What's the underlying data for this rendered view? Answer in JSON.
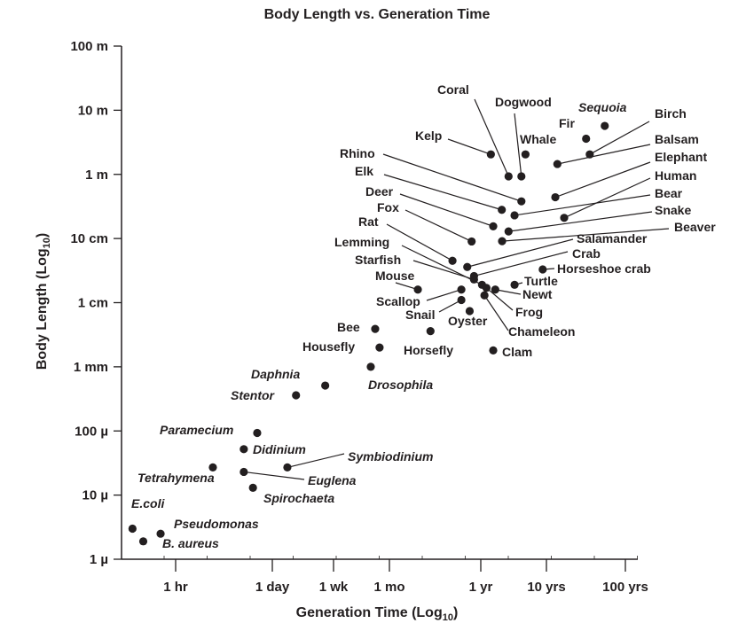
{
  "chart_data": {
    "type": "scatter",
    "title": "Body Length vs. Generation Time",
    "xlabel": "Generation Time (Log10)",
    "xlabel_main": "Generation Time (Log",
    "xlabel_sub": "10",
    "xlabel_close": ")",
    "ylabel": "Body Length (Log10)",
    "ylabel_main": "Body Length (Log",
    "ylabel_sub": "10",
    "ylabel_close": ")",
    "x_scale": "log",
    "y_scale": "log",
    "x_units": "hours",
    "y_units": "meters",
    "x_ticks": [
      {
        "label": "1 hr",
        "hours": 1
      },
      {
        "label": "1 day",
        "hours": 24
      },
      {
        "label": "1 wk",
        "hours": 168
      },
      {
        "label": "1 mo",
        "hours": 720
      },
      {
        "label": "1 yr",
        "hours": 8760
      },
      {
        "label": "10 yrs",
        "hours": 87600
      },
      {
        "label": "100 yrs",
        "hours": 876000
      }
    ],
    "y_ticks": [
      {
        "label": "100 m",
        "meters": 100
      },
      {
        "label": "10 m",
        "meters": 10
      },
      {
        "label": "1 m",
        "meters": 1
      },
      {
        "label": "10 cm",
        "meters": 0.1
      },
      {
        "label": "1 cm",
        "meters": 0.01
      },
      {
        "label": "1 mm",
        "meters": 0.001
      },
      {
        "label": "100 µ",
        "meters": 0.0001
      },
      {
        "label": "10 µ",
        "meters": 1e-05
      },
      {
        "label": "1 µ",
        "meters": 1e-06
      }
    ],
    "ylim_meters": [
      1e-06,
      100
    ],
    "grid": false,
    "marker_color": "#231f20",
    "points": [
      {
        "name": "Coral",
        "hours": 23200,
        "meters": 0.93,
        "emphasis": true
      },
      {
        "name": "Dogwood",
        "hours": 36400,
        "meters": 0.93
      },
      {
        "name": "Sequoia",
        "hours": 480000,
        "meters": 5.7,
        "italic": true
      },
      {
        "name": "Birch",
        "hours": 310000,
        "meters": 2.05
      },
      {
        "name": "Fir",
        "hours": 278600,
        "meters": 3.6
      },
      {
        "name": "Kelp",
        "hours": 12470,
        "meters": 2.05
      },
      {
        "name": "Whale",
        "hours": 42000,
        "meters": 2.05
      },
      {
        "name": "Balsam",
        "hours": 120500,
        "meters": 1.45
      },
      {
        "name": "Elephant",
        "hours": 113500,
        "meters": 0.44
      },
      {
        "name": "Rhino",
        "hours": 36400,
        "meters": 0.38
      },
      {
        "name": "Elk",
        "hours": 18300,
        "meters": 0.28
      },
      {
        "name": "Human",
        "hours": 147000,
        "meters": 0.21
      },
      {
        "name": "Deer",
        "hours": 13550,
        "meters": 0.155
      },
      {
        "name": "Bear",
        "hours": 28600,
        "meters": 0.23
      },
      {
        "name": "Fox",
        "hours": 6820,
        "meters": 0.09
      },
      {
        "name": "Snake",
        "hours": 23200,
        "meters": 0.129
      },
      {
        "name": "Rat",
        "hours": 4040,
        "meters": 0.045
      },
      {
        "name": "Beaver",
        "hours": 18500,
        "meters": 0.091
      },
      {
        "name": "Lemming",
        "hours": 9140,
        "meters": 0.019
      },
      {
        "name": "Salamander",
        "hours": 6050,
        "meters": 0.036
      },
      {
        "name": "Crab",
        "hours": 7280,
        "meters": 0.026
      },
      {
        "name": "Starfish",
        "hours": 7280,
        "meters": 0.023
      },
      {
        "name": "Horseshoe crab",
        "hours": 76900,
        "meters": 0.033
      },
      {
        "name": "Mouse",
        "hours": 1567,
        "meters": 0.016
      },
      {
        "name": "Turtle",
        "hours": 28640,
        "meters": 0.019
      },
      {
        "name": "Scallop",
        "hours": 5150,
        "meters": 0.016
      },
      {
        "name": "Newt",
        "hours": 14560,
        "meters": 0.016
      },
      {
        "name": "Snail",
        "hours": 5150,
        "meters": 0.011
      },
      {
        "name": "Frog",
        "hours": 10690,
        "meters": 0.017
      },
      {
        "name": "Oyster",
        "hours": 6460,
        "meters": 0.0074
      },
      {
        "name": "Chameleon",
        "hours": 9960,
        "meters": 0.013
      },
      {
        "name": "Bee",
        "hours": 497,
        "meters": 0.0039
      },
      {
        "name": "Housefly",
        "hours": 557,
        "meters": 0.002
      },
      {
        "name": "Horsefly",
        "hours": 2213,
        "meters": 0.0036
      },
      {
        "name": "Clam",
        "hours": 13550,
        "meters": 0.0018
      },
      {
        "name": "Daphnia",
        "hours": 129,
        "meters": 0.00051,
        "italic": true
      },
      {
        "name": "Drosophila",
        "hours": 443,
        "meters": 0.001,
        "italic": true
      },
      {
        "name": "Stentor",
        "hours": 51,
        "meters": 0.00036,
        "italic": true
      },
      {
        "name": "Paramecium",
        "hours": 14.6,
        "meters": 9.3e-05,
        "italic": true
      },
      {
        "name": "Didinium",
        "hours": 9.4,
        "meters": 5.2e-05,
        "italic": true
      },
      {
        "name": "Symbiodinium",
        "hours": 38.7,
        "meters": 2.7e-05,
        "italic": true,
        "emphasis": true
      },
      {
        "name": "Tetrahymena",
        "hours": 3.4,
        "meters": 2.7e-05,
        "italic": true
      },
      {
        "name": "Euglena",
        "hours": 9.4,
        "meters": 2.3e-05,
        "italic": true
      },
      {
        "name": "Spirochaeta",
        "hours": 12.7,
        "meters": 1.3e-05,
        "italic": true
      },
      {
        "name": "E.coli",
        "hours": 0.242,
        "meters": 3e-06,
        "italic": true
      },
      {
        "name": "Pseudomonas",
        "hours": 0.61,
        "meters": 2.5e-06,
        "italic": true
      },
      {
        "name": "B. aureus",
        "hours": 0.345,
        "meters": 1.9e-06,
        "italic": true
      }
    ]
  }
}
